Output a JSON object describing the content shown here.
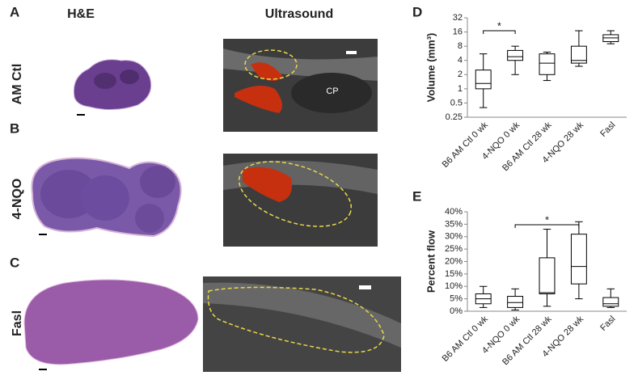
{
  "panels": {
    "a": "A",
    "b": "B",
    "c": "C",
    "d": "D",
    "e": "E",
    "col_he": "H&E",
    "col_us": "Ultrasound",
    "row_a": "AM Ctl",
    "row_b": "4-NQO",
    "row_c": "Fasl",
    "cp": "CP"
  },
  "chart_data": [
    {
      "type": "box",
      "ylabel": "Volume (mm³)",
      "log_scale": true,
      "categories": [
        "B6 AM Ctl  0 wk",
        "4-NQO 0 wk",
        "B6 AM Ctl 28 wk",
        "4-NQO 28 wk",
        "Fasl"
      ],
      "min": [
        0.4,
        2,
        1.5,
        3,
        9
      ],
      "q1": [
        1,
        4,
        2,
        3.5,
        10
      ],
      "median": [
        1.3,
        4.8,
        3.5,
        4,
        12
      ],
      "q3": [
        2.5,
        6.5,
        5.5,
        8,
        14
      ],
      "max": [
        5.5,
        8,
        6,
        17,
        17
      ],
      "ylim": [
        0.25,
        32
      ],
      "yticks": [
        0.25,
        0.5,
        1,
        2,
        4,
        8,
        16,
        32
      ],
      "annotation": "*"
    },
    {
      "type": "box",
      "ylabel": "Percent flow",
      "log_scale": false,
      "categories": [
        "B6 AM Ctl 0 wk",
        "4-NQO 0 wk",
        "B6 AM Ctl 28 wk",
        "4-NQO 28 wk",
        "Fasl"
      ],
      "min": [
        1.5,
        0.5,
        2,
        5,
        1.5
      ],
      "q1": [
        3,
        1.5,
        7,
        11,
        2
      ],
      "median": [
        5,
        3.5,
        7.5,
        18,
        3
      ],
      "q3": [
        7,
        6,
        21.5,
        31,
        5.5
      ],
      "max": [
        10,
        9,
        33,
        36,
        9
      ],
      "ylim": [
        0,
        40
      ],
      "yticks": [
        {
          "value": 0,
          "label": "0%"
        },
        {
          "value": 5,
          "label": "5%"
        },
        {
          "value": 10,
          "label": "10%"
        },
        {
          "value": 15,
          "label": "15%"
        },
        {
          "value": 20,
          "label": "20%"
        },
        {
          "value": 25,
          "label": "25%"
        },
        {
          "value": 30,
          "label": "30%"
        },
        {
          "value": 35,
          "label": "35%"
        },
        {
          "value": 40,
          "label": "40%"
        }
      ],
      "annotation": "*"
    }
  ]
}
